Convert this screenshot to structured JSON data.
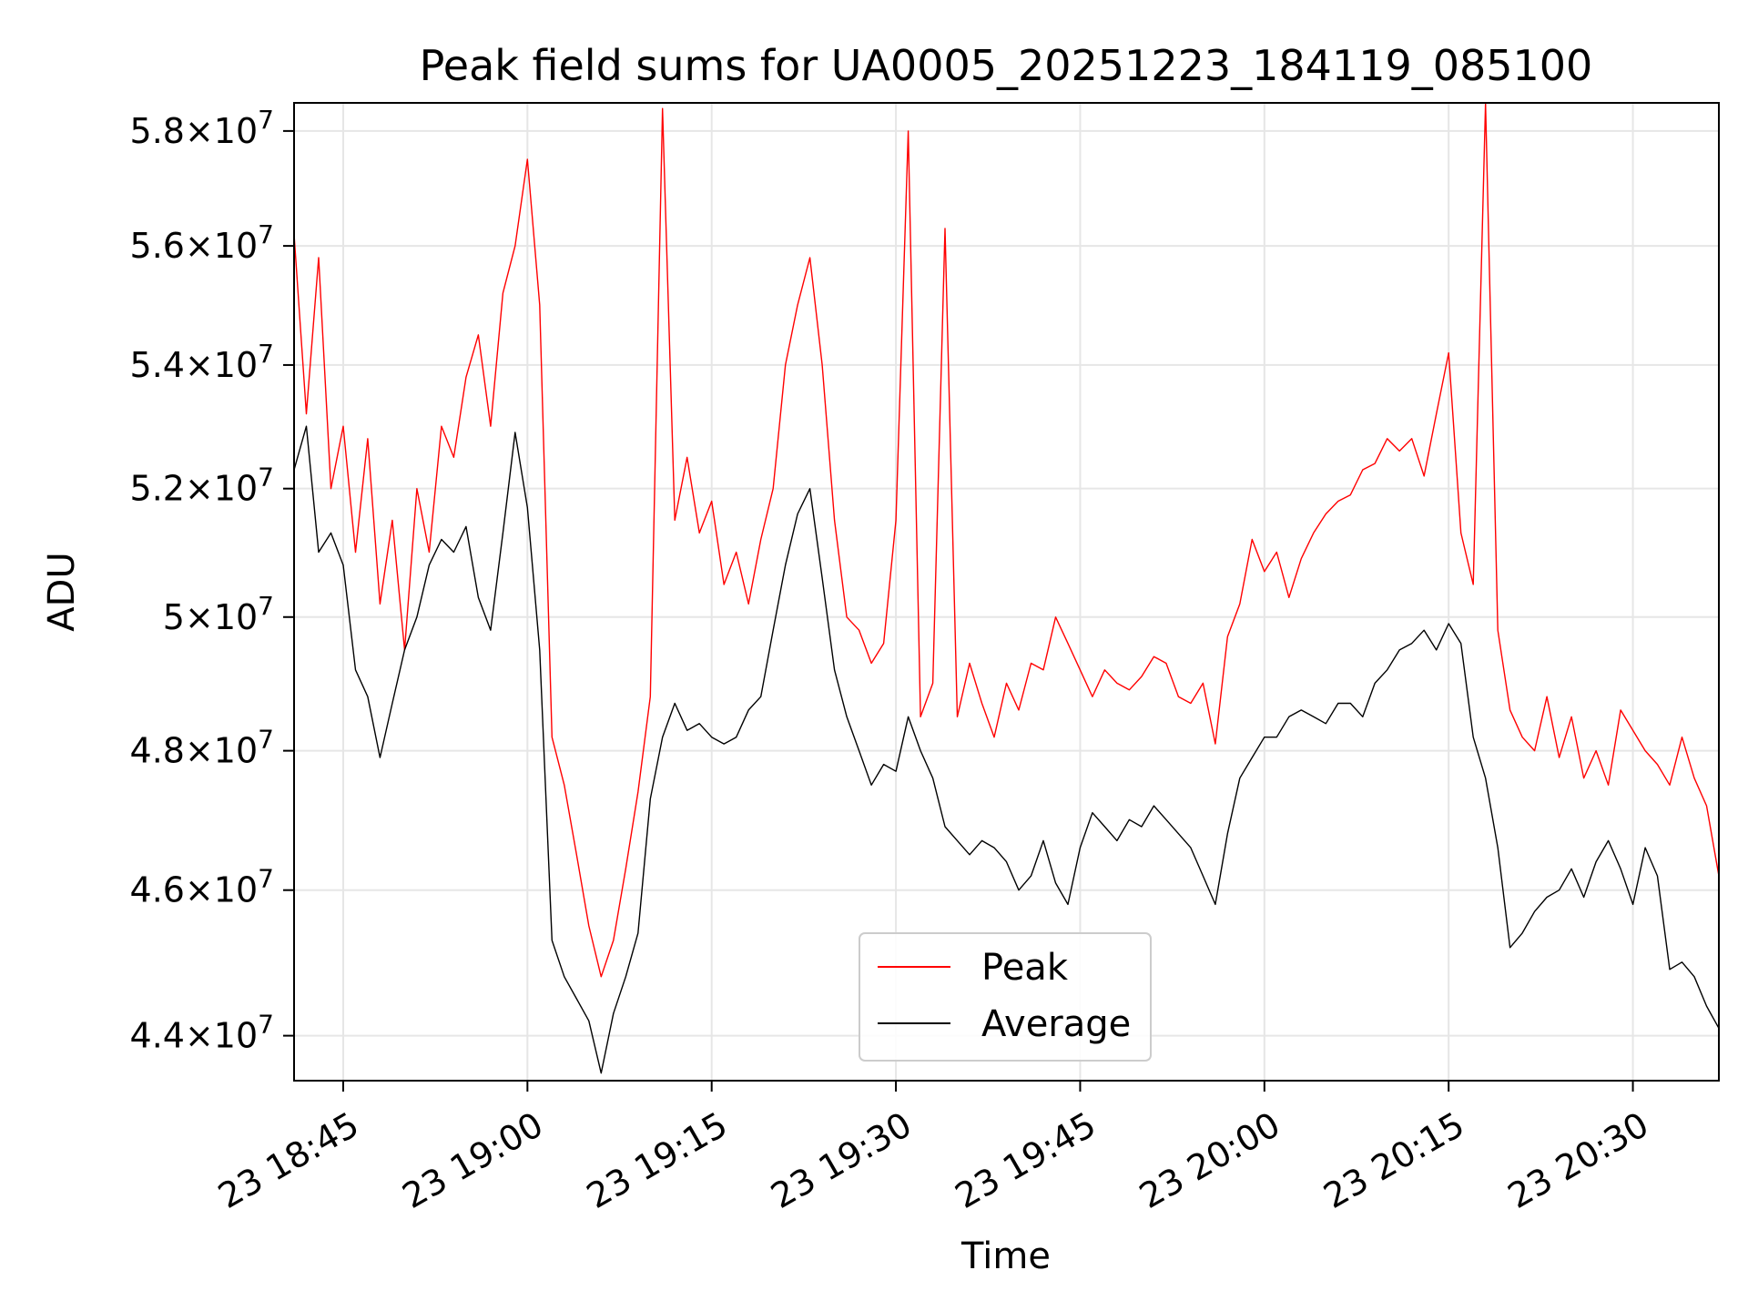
{
  "chart_data": {
    "type": "line",
    "title": "Peak field sums for UA0005_20251223_184119_085100",
    "xlabel": "Time",
    "ylabel": "ADU",
    "x_start": "23 18:41",
    "x_end": "23 20:37",
    "x_ticks": [
      "23 18:45",
      "23 19:00",
      "23 19:15",
      "23 19:30",
      "23 19:45",
      "23 20:00",
      "23 20:15",
      "23 20:30"
    ],
    "y_scale": "log",
    "ylim": [
      43400000,
      58500000
    ],
    "y_ticks": [
      {
        "value": 44000000,
        "mantissa": "4.4",
        "base": "10",
        "exp": "7"
      },
      {
        "value": 46000000,
        "mantissa": "4.6",
        "base": "10",
        "exp": "7"
      },
      {
        "value": 48000000,
        "mantissa": "4.8",
        "base": "10",
        "exp": "7"
      },
      {
        "value": 50000000,
        "mantissa": "5",
        "base": "10",
        "exp": "7"
      },
      {
        "value": 52000000,
        "mantissa": "5.2",
        "base": "10",
        "exp": "7"
      },
      {
        "value": 54000000,
        "mantissa": "5.4",
        "base": "10",
        "exp": "7"
      },
      {
        "value": 56000000,
        "mantissa": "5.6",
        "base": "10",
        "exp": "7"
      },
      {
        "value": 58000000,
        "mantissa": "5.8",
        "base": "10",
        "exp": "7"
      }
    ],
    "grid": true,
    "legend": "lower-center",
    "series": [
      {
        "name": "Peak",
        "color": "#ff0000",
        "x": [
          "18:41",
          "18:42",
          "18:43",
          "18:44",
          "18:45",
          "18:46",
          "18:47",
          "18:48",
          "18:49",
          "18:50",
          "18:51",
          "18:52",
          "18:53",
          "18:54",
          "18:55",
          "18:56",
          "18:57",
          "18:58",
          "18:59",
          "19:00",
          "19:01",
          "19:02",
          "19:03",
          "19:04",
          "19:05",
          "19:06",
          "19:07",
          "19:08",
          "19:09",
          "19:10",
          "19:11",
          "19:12",
          "19:13",
          "19:14",
          "19:15",
          "19:16",
          "19:17",
          "19:18",
          "19:19",
          "19:20",
          "19:21",
          "19:22",
          "19:23",
          "19:24",
          "19:25",
          "19:26",
          "19:27",
          "19:28",
          "19:29",
          "19:30",
          "19:31",
          "19:32",
          "19:33",
          "19:34",
          "19:35",
          "19:36",
          "19:37",
          "19:38",
          "19:39",
          "19:40",
          "19:41",
          "19:42",
          "19:43",
          "19:44",
          "19:45",
          "19:46",
          "19:47",
          "19:48",
          "19:49",
          "19:50",
          "19:51",
          "19:52",
          "19:53",
          "19:54",
          "19:55",
          "19:56",
          "19:57",
          "19:58",
          "19:59",
          "20:00",
          "20:01",
          "20:02",
          "20:03",
          "20:04",
          "20:05",
          "20:06",
          "20:07",
          "20:08",
          "20:09",
          "20:10",
          "20:11",
          "20:12",
          "20:13",
          "20:14",
          "20:15",
          "20:16",
          "20:17",
          "20:18",
          "20:19",
          "20:20",
          "20:21",
          "20:22",
          "20:23",
          "20:24",
          "20:25",
          "20:26",
          "20:27",
          "20:28",
          "20:29",
          "20:30",
          "20:31",
          "20:32",
          "20:33",
          "20:34",
          "20:35",
          "20:36",
          "20:37"
        ],
        "values": [
          56200000,
          53200000,
          55800000,
          52000000,
          53000000,
          51000000,
          52800000,
          50200000,
          51500000,
          49500000,
          52000000,
          51000000,
          53000000,
          52500000,
          53800000,
          54500000,
          53000000,
          55200000,
          56000000,
          57500000,
          55000000,
          48200000,
          47500000,
          46500000,
          45500000,
          44800000,
          45300000,
          46300000,
          47400000,
          48800000,
          58400000,
          51500000,
          52500000,
          51300000,
          51800000,
          50500000,
          51000000,
          50200000,
          51200000,
          52000000,
          54000000,
          55000000,
          55800000,
          54000000,
          51500000,
          50000000,
          49800000,
          49300000,
          49600000,
          51500000,
          58000000,
          48500000,
          49000000,
          56300000,
          48500000,
          49300000,
          48700000,
          48200000,
          49000000,
          48600000,
          49300000,
          49200000,
          50000000,
          49600000,
          49200000,
          48800000,
          49200000,
          49000000,
          48900000,
          49100000,
          49400000,
          49300000,
          48800000,
          48700000,
          49000000,
          48100000,
          49700000,
          50200000,
          51200000,
          50700000,
          51000000,
          50300000,
          50900000,
          51300000,
          51600000,
          51800000,
          51900000,
          52300000,
          52400000,
          52800000,
          52600000,
          52800000,
          52200000,
          53200000,
          54200000,
          51300000,
          50500000,
          58500000,
          49800000,
          48600000,
          48200000,
          48000000,
          48800000,
          47900000,
          48500000,
          47600000,
          48000000,
          47500000,
          48600000,
          48300000,
          48000000,
          47800000,
          47500000,
          48200000,
          47600000,
          47200000,
          46200000
        ]
      },
      {
        "name": "Average",
        "color": "#000000",
        "x": [
          "18:41",
          "18:42",
          "18:43",
          "18:44",
          "18:45",
          "18:46",
          "18:47",
          "18:48",
          "18:49",
          "18:50",
          "18:51",
          "18:52",
          "18:53",
          "18:54",
          "18:55",
          "18:56",
          "18:57",
          "18:58",
          "18:59",
          "19:00",
          "19:01",
          "19:02",
          "19:03",
          "19:04",
          "19:05",
          "19:06",
          "19:07",
          "19:08",
          "19:09",
          "19:10",
          "19:11",
          "19:12",
          "19:13",
          "19:14",
          "19:15",
          "19:16",
          "19:17",
          "19:18",
          "19:19",
          "19:20",
          "19:21",
          "19:22",
          "19:23",
          "19:24",
          "19:25",
          "19:26",
          "19:27",
          "19:28",
          "19:29",
          "19:30",
          "19:31",
          "19:32",
          "19:33",
          "19:34",
          "19:35",
          "19:36",
          "19:37",
          "19:38",
          "19:39",
          "19:40",
          "19:41",
          "19:42",
          "19:43",
          "19:44",
          "19:45",
          "19:46",
          "19:47",
          "19:48",
          "19:49",
          "19:50",
          "19:51",
          "19:52",
          "19:53",
          "19:54",
          "19:55",
          "19:56",
          "19:57",
          "19:58",
          "19:59",
          "20:00",
          "20:01",
          "20:02",
          "20:03",
          "20:04",
          "20:05",
          "20:06",
          "20:07",
          "20:08",
          "20:09",
          "20:10",
          "20:11",
          "20:12",
          "20:13",
          "20:14",
          "20:15",
          "20:16",
          "20:17",
          "20:18",
          "20:19",
          "20:20",
          "20:21",
          "20:22",
          "20:23",
          "20:24",
          "20:25",
          "20:26",
          "20:27",
          "20:28",
          "20:29",
          "20:30",
          "20:31",
          "20:32",
          "20:33",
          "20:34",
          "20:35",
          "20:36",
          "20:37"
        ],
        "values": [
          52300000,
          53000000,
          51000000,
          51300000,
          50800000,
          49200000,
          48800000,
          47900000,
          48700000,
          49500000,
          50000000,
          50800000,
          51200000,
          51000000,
          51400000,
          50300000,
          49800000,
          51300000,
          52900000,
          51700000,
          49500000,
          45300000,
          44800000,
          44500000,
          44200000,
          43500000,
          44300000,
          44800000,
          45400000,
          47300000,
          48200000,
          48700000,
          48300000,
          48400000,
          48200000,
          48100000,
          48200000,
          48600000,
          48800000,
          49800000,
          50800000,
          51600000,
          52000000,
          50600000,
          49200000,
          48500000,
          48000000,
          47500000,
          47800000,
          47700000,
          48500000,
          48000000,
          47600000,
          46900000,
          46700000,
          46500000,
          46700000,
          46600000,
          46400000,
          46000000,
          46200000,
          46700000,
          46100000,
          45800000,
          46600000,
          47100000,
          46900000,
          46700000,
          47000000,
          46900000,
          47200000,
          47000000,
          46800000,
          46600000,
          46200000,
          45800000,
          46800000,
          47600000,
          47900000,
          48200000,
          48200000,
          48500000,
          48600000,
          48500000,
          48400000,
          48700000,
          48700000,
          48500000,
          49000000,
          49200000,
          49500000,
          49600000,
          49800000,
          49500000,
          49900000,
          49600000,
          48200000,
          47600000,
          46600000,
          45200000,
          45400000,
          45700000,
          45900000,
          46000000,
          46300000,
          45900000,
          46400000,
          46700000,
          46300000,
          45800000,
          46600000,
          46200000,
          44900000,
          45000000,
          44800000,
          44400000,
          44100000
        ]
      }
    ]
  }
}
